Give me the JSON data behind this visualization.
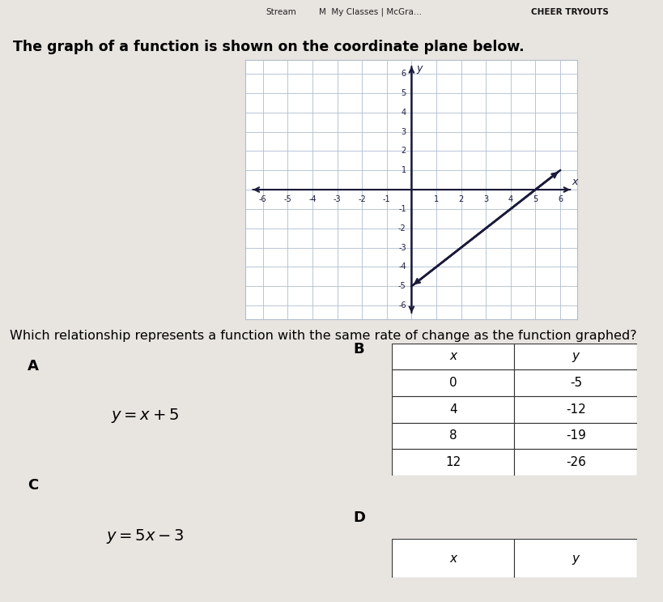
{
  "bg_color": "#e8e4e0",
  "top_bar_color": "#c8c4c0",
  "title_text": "The graph of a function is shown on the coordinate plane below.",
  "question_text": "Which relationship represents a function with the same rate of change as the function graphed?",
  "graph": {
    "xlim": [
      -6.7,
      6.7
    ],
    "ylim": [
      -6.7,
      6.7
    ],
    "xticks": [
      -6,
      -5,
      -4,
      -3,
      -2,
      -1,
      1,
      2,
      3,
      4,
      5,
      6
    ],
    "yticks": [
      -6,
      -5,
      -4,
      -3,
      -2,
      -1,
      1,
      2,
      3,
      4,
      5,
      6
    ],
    "line_x1": 0.0,
    "line_y1": -5.0,
    "line_x2": 6.0,
    "line_y2": 1.0,
    "line_color": "#1a1a3a",
    "grid_color": "#b0bdd0",
    "axis_color": "#1a1a3a",
    "bg_color": "white"
  },
  "option_A_label": "A",
  "option_A_eq": "$y = x + 5$",
  "option_B_label": "B",
  "option_B_table": {
    "headers": [
      "x",
      "y"
    ],
    "rows": [
      [
        "0",
        "-5"
      ],
      [
        "4",
        "-12"
      ],
      [
        "8",
        "-19"
      ],
      [
        "12",
        "-26"
      ]
    ]
  },
  "option_C_label": "C",
  "option_C_eq": "$y = 5x - 3$",
  "option_D_label": "D",
  "option_D_table": {
    "headers": [
      "x",
      "y"
    ],
    "rows": []
  },
  "tab_texts": [
    "Stream",
    "M  My Classes | McGra...",
    "CHEER TRYOUTS"
  ]
}
